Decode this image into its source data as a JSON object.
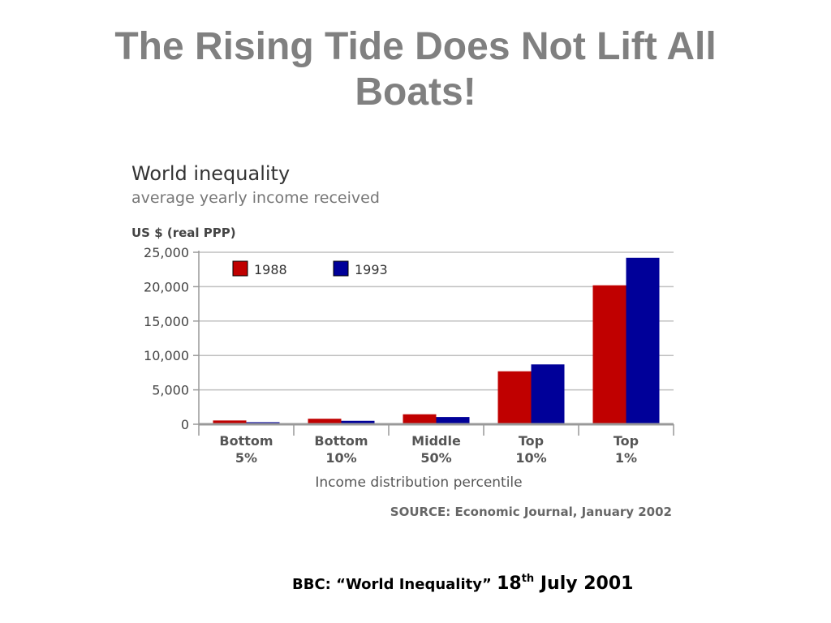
{
  "slide": {
    "title": "The Rising Tide Does Not Lift All Boats!",
    "citation": {
      "source_text": "BBC: “World Inequality”",
      "day": "18",
      "day_suffix": "th",
      "month_year": "July 2001"
    }
  },
  "chart_data": {
    "type": "bar",
    "title": "World inequality",
    "subtitle": "average yearly income received",
    "ylabel": "US $ (real PPP)",
    "xlabel": "Income distribution percentile",
    "source": "SOURCE: Economic Journal, January 2002",
    "categories": [
      [
        "Bottom",
        "5%"
      ],
      [
        "Bottom",
        "10%"
      ],
      [
        "Middle",
        "50%"
      ],
      [
        "Top",
        "10%"
      ],
      [
        "Top",
        "1%"
      ]
    ],
    "series": [
      {
        "name": "1988",
        "color": "#c00000",
        "values": [
          550,
          800,
          1450,
          7700,
          20200
        ]
      },
      {
        "name": "1993",
        "color": "#000099",
        "values": [
          300,
          500,
          1050,
          8700,
          24200
        ]
      }
    ],
    "ylim": [
      0,
      25000
    ],
    "yticks": [
      0,
      5000,
      10000,
      15000,
      20000,
      25000
    ],
    "ytick_labels": [
      "0",
      "5,000",
      "10,000",
      "15,000",
      "20,000",
      "25,000"
    ],
    "grid": true,
    "legend_position": "top-left"
  }
}
